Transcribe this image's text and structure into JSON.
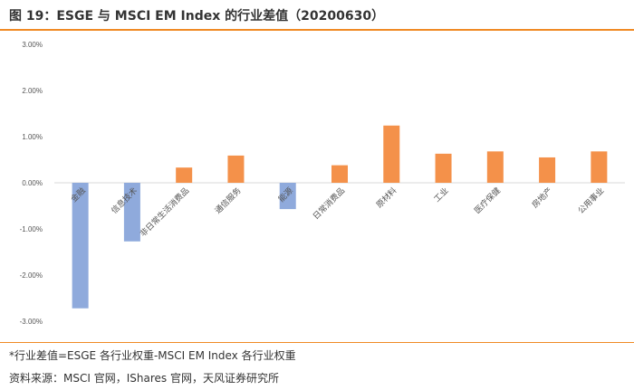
{
  "header": {
    "title": "图 19：ESGE 与 MSCI EM Index 的行业差值（20200630）"
  },
  "chart_data": {
    "type": "bar",
    "title": "ESGE 与 MSCI EM Index 的行业差值（20200630）",
    "xlabel": "",
    "ylabel": "",
    "ylim": [
      -3.0,
      3.0
    ],
    "yticks": [
      "3.00%",
      "2.00%",
      "1.00%",
      "0.00%",
      "-1.00%",
      "-2.00%",
      "-3.00%"
    ],
    "categories": [
      "金融",
      "信息技术",
      "非日常生活消费品",
      "通信服务",
      "能源",
      "日常消费品",
      "原材料",
      "工业",
      "医疗保健",
      "房地产",
      "公用事业"
    ],
    "values": [
      -2.72,
      -1.27,
      0.33,
      0.59,
      -0.57,
      0.38,
      1.24,
      0.63,
      0.68,
      0.55,
      0.68
    ],
    "colors": {
      "positive": "#f4914a",
      "negative": "#8faadc"
    },
    "grid": false,
    "legend": "none"
  },
  "footer": {
    "note": "*行业差值=ESGE 各行业权重-MSCI EM Index 各行业权重",
    "source": "资料来源：MSCI 官网，IShares 官网，天风证券研究所"
  }
}
